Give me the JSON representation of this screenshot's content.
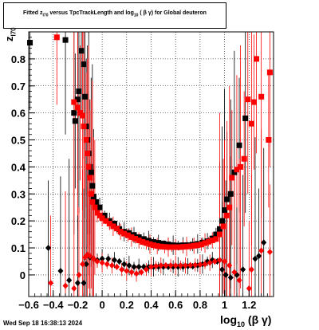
{
  "title": {
    "prefix": "Fitted  z",
    "prefix_sub": "I70",
    "middle": "  versus TpcTrackLength and log",
    "middle_sub": "10",
    "suffix": " ( β γ) for Global deuteron"
  },
  "timestamp": "Wed Sep 18 16:38:13 2024",
  "chart_data": {
    "type": "scatter",
    "title": "Fitted z_I70 versus TpcTrackLength and log10(β γ) for Global deuteron",
    "xlabel": "log10 (β γ)",
    "ylabel": "z_I70",
    "xlabel_parts": {
      "main": "log",
      "sub": "10",
      "rest": " (β γ)"
    },
    "ylabel_parts": {
      "main": "z",
      "sub": "I70"
    },
    "xlim": [
      -0.6,
      1.4
    ],
    "ylim": [
      -0.08,
      0.9
    ],
    "x_ticks": [
      -0.6,
      -0.4,
      -0.2,
      0,
      0.2,
      0.4,
      0.6,
      0.8,
      1,
      1.2
    ],
    "x_tick_labels": [
      "−0.6",
      "−0.4",
      "−0.2",
      "0",
      "0.2",
      "0.4",
      "0.6",
      "0.8",
      "1",
      "1.2"
    ],
    "y_ticks": [
      0,
      0.1,
      0.2,
      0.3,
      0.4,
      0.5,
      0.6,
      0.7,
      0.8
    ],
    "y_tick_labels": [
      "0",
      "0.1",
      "0.2",
      "0.3",
      "0.4",
      "0.5",
      "0.6",
      "0.7",
      "0.8"
    ],
    "grid": true,
    "colors": {
      "black": "#000000",
      "red": "#ff0000"
    },
    "series": [
      {
        "color": "#000000",
        "marker": "square",
        "points": [
          [
            -0.59,
            0.86
          ],
          [
            -0.3,
            0.87
          ],
          [
            -0.23,
            0.6
          ],
          [
            -0.22,
            0.57
          ],
          [
            -0.2,
            0.65
          ],
          [
            -0.19,
            0.68
          ],
          [
            -0.17,
            0.83
          ],
          [
            -0.15,
            0.78
          ],
          [
            -0.14,
            0.66
          ],
          [
            -0.13,
            0.55
          ],
          [
            -0.12,
            0.5
          ],
          [
            -0.11,
            0.45
          ],
          [
            -0.1,
            0.4
          ],
          [
            -0.09,
            0.38
          ],
          [
            -0.08,
            0.33
          ],
          [
            -0.07,
            0.29
          ],
          [
            -0.05,
            0.27
          ],
          [
            -0.02,
            0.25
          ],
          [
            0.02,
            0.22
          ],
          [
            0.06,
            0.2
          ],
          [
            0.1,
            0.19
          ],
          [
            0.14,
            0.17
          ],
          [
            0.18,
            0.16
          ],
          [
            0.22,
            0.155
          ],
          [
            0.26,
            0.148
          ],
          [
            0.3,
            0.14
          ],
          [
            0.34,
            0.133
          ],
          [
            0.38,
            0.127
          ],
          [
            0.42,
            0.122
          ],
          [
            0.46,
            0.119
          ],
          [
            0.5,
            0.116
          ],
          [
            0.54,
            0.113
          ],
          [
            0.58,
            0.11
          ],
          [
            0.62,
            0.109
          ],
          [
            0.66,
            0.11
          ],
          [
            0.7,
            0.11
          ],
          [
            0.74,
            0.112
          ],
          [
            0.78,
            0.115
          ],
          [
            0.82,
            0.12
          ],
          [
            0.86,
            0.125
          ],
          [
            0.9,
            0.135
          ],
          [
            0.93,
            0.15
          ],
          [
            0.96,
            0.17
          ],
          [
            0.98,
            0.2
          ],
          [
            1.0,
            0.24
          ],
          [
            1.02,
            0.28
          ],
          [
            1.05,
            0.3
          ],
          [
            1.08,
            0.38
          ],
          [
            1.12,
            0.48
          ],
          [
            1.17,
            0.58
          ]
        ]
      },
      {
        "color": "#ff0000",
        "marker": "square",
        "points": [
          [
            -0.37,
            0.88
          ],
          [
            -0.23,
            0.64
          ],
          [
            -0.2,
            0.62
          ],
          [
            -0.18,
            0.6
          ],
          [
            -0.16,
            0.59
          ],
          [
            -0.15,
            0.55
          ],
          [
            -0.13,
            0.5
          ],
          [
            -0.12,
            0.45
          ],
          [
            -0.11,
            0.4
          ],
          [
            -0.1,
            0.36
          ],
          [
            -0.09,
            0.3
          ],
          [
            -0.08,
            0.27
          ],
          [
            -0.06,
            0.25
          ],
          [
            -0.04,
            0.23
          ],
          [
            -0.02,
            0.22
          ],
          [
            0.0,
            0.21
          ],
          [
            0.03,
            0.2
          ],
          [
            0.06,
            0.19
          ],
          [
            0.09,
            0.18
          ],
          [
            0.12,
            0.172
          ],
          [
            0.15,
            0.16
          ],
          [
            0.18,
            0.153
          ],
          [
            0.21,
            0.147
          ],
          [
            0.24,
            0.14
          ],
          [
            0.27,
            0.134
          ],
          [
            0.3,
            0.128
          ],
          [
            0.33,
            0.122
          ],
          [
            0.36,
            0.118
          ],
          [
            0.39,
            0.114
          ],
          [
            0.42,
            0.11
          ],
          [
            0.45,
            0.107
          ],
          [
            0.48,
            0.105
          ],
          [
            0.51,
            0.104
          ],
          [
            0.54,
            0.103
          ],
          [
            0.57,
            0.103
          ],
          [
            0.6,
            0.103
          ],
          [
            0.63,
            0.103
          ],
          [
            0.66,
            0.104
          ],
          [
            0.69,
            0.105
          ],
          [
            0.72,
            0.106
          ],
          [
            0.75,
            0.108
          ],
          [
            0.78,
            0.11
          ],
          [
            0.81,
            0.113
          ],
          [
            0.84,
            0.118
          ],
          [
            0.87,
            0.123
          ],
          [
            0.9,
            0.128
          ],
          [
            0.93,
            0.133
          ],
          [
            0.96,
            0.15
          ],
          [
            0.99,
            0.18
          ],
          [
            1.02,
            0.22
          ],
          [
            1.04,
            0.25
          ],
          [
            1.06,
            0.36
          ],
          [
            1.1,
            0.39
          ],
          [
            1.13,
            0.4
          ],
          [
            1.16,
            0.43
          ],
          [
            1.19,
            0.65
          ],
          [
            1.22,
            0.56
          ],
          [
            1.24,
            0.64
          ],
          [
            1.26,
            0.8
          ],
          [
            1.3,
            0.66
          ],
          [
            1.36,
            0.5
          ],
          [
            1.37,
            0.75
          ]
        ]
      },
      {
        "color": "#000000",
        "marker": "diamond",
        "points": [
          [
            -0.44,
            0.1
          ],
          [
            -0.34,
            0.015
          ],
          [
            -0.27,
            -0.02
          ],
          [
            -0.2,
            -0.03
          ],
          [
            -0.15,
            -0.03
          ],
          [
            -0.13,
            0.04
          ],
          [
            -0.1,
            0.065
          ],
          [
            -0.07,
            0.06
          ],
          [
            -0.04,
            0.055
          ],
          [
            0.0,
            0.06
          ],
          [
            0.05,
            0.06
          ],
          [
            0.1,
            0.055
          ],
          [
            0.14,
            0.05
          ],
          [
            0.18,
            0.04
          ],
          [
            0.22,
            0.035
          ],
          [
            0.26,
            0.03
          ],
          [
            0.3,
            0.03
          ],
          [
            0.34,
            0.03
          ],
          [
            0.38,
            0.03
          ],
          [
            0.42,
            0.03
          ],
          [
            0.46,
            0.03
          ],
          [
            0.5,
            0.03
          ],
          [
            0.54,
            0.03
          ],
          [
            0.58,
            0.03
          ],
          [
            0.62,
            0.03
          ],
          [
            0.66,
            0.03
          ],
          [
            0.7,
            0.032
          ],
          [
            0.74,
            0.032
          ],
          [
            0.78,
            0.035
          ],
          [
            0.82,
            0.04
          ],
          [
            0.86,
            0.05
          ],
          [
            0.9,
            0.055
          ],
          [
            0.94,
            0.05
          ],
          [
            0.98,
            0.02
          ],
          [
            1.01,
            0.0
          ],
          [
            1.05,
            -0.01
          ],
          [
            1.1,
            0.0
          ],
          [
            1.15,
            0.02
          ],
          [
            1.25,
            0.06
          ],
          [
            1.28,
            0.07
          ],
          [
            1.32,
            0.12
          ]
        ]
      },
      {
        "color": "#ff0000",
        "marker": "diamond",
        "points": [
          [
            -0.42,
            -0.03
          ],
          [
            -0.3,
            -0.04
          ],
          [
            -0.23,
            -0.05
          ],
          [
            -0.19,
            0.0
          ],
          [
            -0.16,
            0.04
          ],
          [
            -0.14,
            0.065
          ],
          [
            -0.12,
            0.075
          ],
          [
            -0.1,
            0.07
          ],
          [
            -0.07,
            0.06
          ],
          [
            -0.04,
            0.05
          ],
          [
            0.0,
            0.045
          ],
          [
            0.04,
            0.04
          ],
          [
            0.08,
            0.035
          ],
          [
            0.12,
            0.03
          ],
          [
            0.16,
            0.02
          ],
          [
            0.2,
            0.015
          ],
          [
            0.24,
            0.01
          ],
          [
            0.28,
            0.005
          ],
          [
            0.32,
            0.01
          ],
          [
            0.36,
            0.02
          ],
          [
            0.4,
            0.03
          ],
          [
            0.44,
            0.033
          ],
          [
            0.48,
            0.035
          ],
          [
            0.52,
            0.035
          ],
          [
            0.56,
            0.035
          ],
          [
            0.6,
            0.035
          ],
          [
            0.64,
            0.035
          ],
          [
            0.68,
            0.035
          ],
          [
            0.72,
            0.036
          ],
          [
            0.76,
            0.037
          ],
          [
            0.8,
            0.038
          ],
          [
            0.84,
            0.04
          ],
          [
            0.88,
            0.045
          ],
          [
            0.92,
            0.05
          ],
          [
            0.96,
            0.055
          ],
          [
            1.0,
            0.05
          ],
          [
            1.04,
            0.035
          ],
          [
            1.08,
            0.01
          ],
          [
            1.12,
            -0.02
          ],
          [
            1.2,
            -0.05
          ],
          [
            1.22,
            0.02
          ],
          [
            1.3,
            0.09
          ],
          [
            1.37,
            0.085
          ]
        ]
      }
    ]
  }
}
